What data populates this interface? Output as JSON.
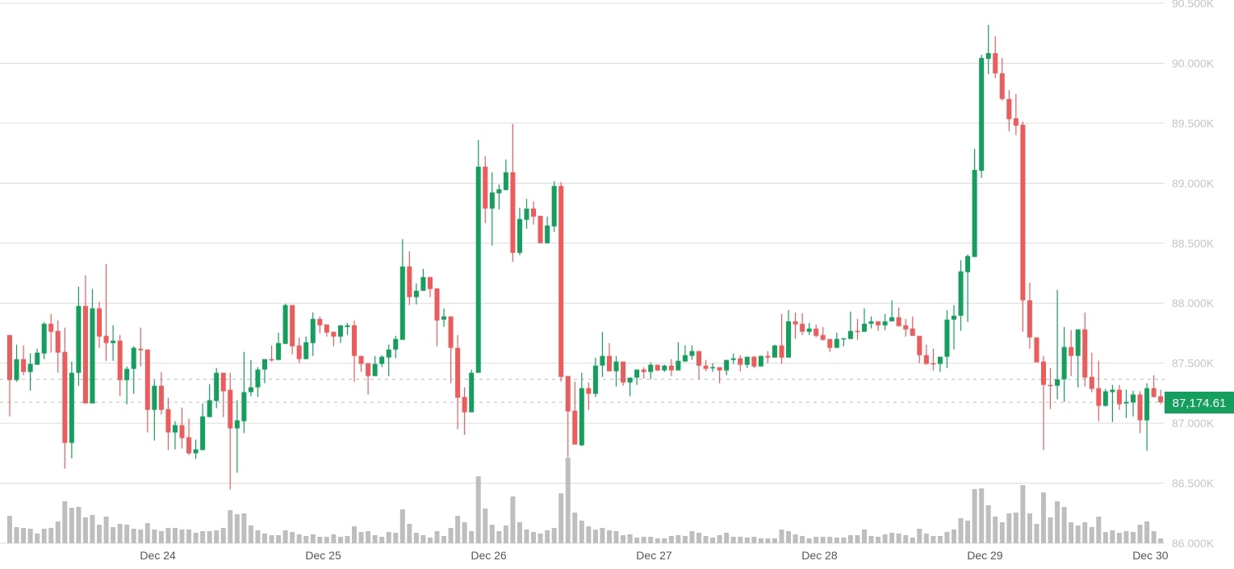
{
  "chart_data": {
    "type": "candlestick",
    "title": "",
    "grid": true,
    "colors": {
      "up": "#12a05c",
      "down": "#ef5b5b",
      "volume": "#bebebe",
      "grid": "#dcdcdc",
      "price_tag": "#12a05c"
    },
    "y_axis": {
      "position": "right",
      "range": [
        86000,
        90500
      ],
      "ticks": [
        {
          "value": 86000,
          "label": "86.000K"
        },
        {
          "value": 86500,
          "label": "86.500K"
        },
        {
          "value": 87000,
          "label": "87.000K"
        },
        {
          "value": 87500,
          "label": "87.500K"
        },
        {
          "value": 88000,
          "label": "88.000K"
        },
        {
          "value": 88500,
          "label": "88.500K"
        },
        {
          "value": 89000,
          "label": "89.000K"
        },
        {
          "value": 89500,
          "label": "89.500K"
        },
        {
          "value": 90000,
          "label": "90.000K"
        },
        {
          "value": 90500,
          "label": "90.500K"
        }
      ]
    },
    "x_axis": {
      "ticks": [
        "Dec 24",
        "Dec 25",
        "Dec 26",
        "Dec 27",
        "Dec 28",
        "Dec 29",
        "Dec 30"
      ]
    },
    "last_price": {
      "value": 87174.61,
      "label": "87,174.61"
    },
    "reference_lines": [
      87366,
      87174.61
    ],
    "candle_fields": [
      "open",
      "high",
      "low",
      "close"
    ],
    "candles": [
      [
        87735,
        87735,
        87057,
        87359
      ],
      [
        87359,
        87655,
        87346,
        87534
      ],
      [
        87534,
        87648,
        87400,
        87427
      ],
      [
        87427,
        87581,
        87272,
        87494
      ],
      [
        87487,
        87621,
        87487,
        87588
      ],
      [
        87581,
        87843,
        87534,
        87829
      ],
      [
        87829,
        87910,
        87588,
        87762
      ],
      [
        87769,
        87856,
        87420,
        87588
      ],
      [
        87594,
        87796,
        86621,
        86836
      ],
      [
        86836,
        87514,
        86708,
        87420
      ],
      [
        87420,
        88138,
        87312,
        87977
      ],
      [
        87977,
        88232,
        87165,
        87165
      ],
      [
        87165,
        88118,
        87165,
        87957
      ],
      [
        87957,
        88010,
        87628,
        87722
      ],
      [
        87728,
        88326,
        87520,
        87668
      ],
      [
        87668,
        87816,
        87520,
        87688
      ],
      [
        87688,
        87735,
        87225,
        87359
      ],
      [
        87359,
        87473,
        87158,
        87453
      ],
      [
        87453,
        87641,
        87245,
        87628
      ],
      [
        87621,
        87796,
        87473,
        87608
      ],
      [
        87614,
        87614,
        86923,
        87111
      ],
      [
        87111,
        87359,
        86856,
        87312
      ],
      [
        87312,
        87427,
        87071,
        87111
      ],
      [
        87118,
        87212,
        86776,
        86923
      ],
      [
        86923,
        87017,
        86782,
        86984
      ],
      [
        86984,
        87131,
        86789,
        86876
      ],
      [
        86883,
        87037,
        86735,
        86749
      ],
      [
        86749,
        86863,
        86702,
        86782
      ],
      [
        86776,
        87165,
        86776,
        87057
      ],
      [
        87051,
        87326,
        87051,
        87192
      ],
      [
        87185,
        87460,
        87125,
        87420
      ],
      [
        87420,
        87420,
        87051,
        87266
      ],
      [
        87279,
        87420,
        86447,
        86957
      ],
      [
        86957,
        87192,
        86588,
        87024
      ],
      [
        87017,
        87594,
        86917,
        87259
      ],
      [
        87259,
        87527,
        87225,
        87299
      ],
      [
        87299,
        87467,
        87219,
        87447
      ],
      [
        87447,
        87534,
        87333,
        87534
      ],
      [
        87534,
        87648,
        87514,
        87527
      ],
      [
        87527,
        87755,
        87527,
        87668
      ],
      [
        87661,
        87997,
        87661,
        87984
      ],
      [
        87984,
        87984,
        87574,
        87641
      ],
      [
        87648,
        87715,
        87500,
        87534
      ],
      [
        87534,
        87722,
        87534,
        87675
      ],
      [
        87668,
        87923,
        87561,
        87869
      ],
      [
        87869,
        87890,
        87749,
        87816
      ],
      [
        87823,
        87823,
        87722,
        87755
      ],
      [
        87762,
        87762,
        87641,
        87722
      ],
      [
        87722,
        87816,
        87668,
        87816
      ],
      [
        87802,
        87836,
        87735,
        87816
      ],
      [
        87816,
        87856,
        87346,
        87561
      ],
      [
        87561,
        87561,
        87427,
        87494
      ],
      [
        87500,
        87500,
        87239,
        87393
      ],
      [
        87393,
        87561,
        87393,
        87494
      ],
      [
        87494,
        87567,
        87467,
        87554
      ],
      [
        87547,
        87655,
        87393,
        87614
      ],
      [
        87614,
        87728,
        87541,
        87702
      ],
      [
        87695,
        88534,
        87695,
        88306
      ],
      [
        88306,
        88433,
        87984,
        88051
      ],
      [
        88051,
        88165,
        87990,
        88104
      ],
      [
        88104,
        88286,
        88104,
        88218
      ],
      [
        88218,
        88218,
        88051,
        88118
      ],
      [
        88124,
        88124,
        87641,
        87856
      ],
      [
        87863,
        87957,
        87802,
        87890
      ],
      [
        87890,
        87890,
        87333,
        87628
      ],
      [
        87628,
        87735,
        86950,
        87212
      ],
      [
        87219,
        87299,
        86903,
        87091
      ],
      [
        87091,
        87447,
        87091,
        87420
      ],
      [
        87420,
        89359,
        87420,
        89138
      ],
      [
        89138,
        89225,
        88668,
        88789
      ],
      [
        88789,
        89091,
        88480,
        88923
      ],
      [
        88916,
        88990,
        88782,
        88950
      ],
      [
        88943,
        89198,
        88943,
        89091
      ],
      [
        89091,
        89494,
        88346,
        88420
      ],
      [
        88420,
        88796,
        88400,
        88702
      ],
      [
        88695,
        88869,
        88621,
        88789
      ],
      [
        88789,
        88849,
        88655,
        88722
      ],
      [
        88728,
        88728,
        88500,
        88500
      ],
      [
        88500,
        88722,
        88500,
        88648
      ],
      [
        88641,
        89017,
        88594,
        88977
      ],
      [
        88977,
        89010,
        87346,
        87386
      ],
      [
        87393,
        87393,
        86715,
        87098
      ],
      [
        87104,
        87346,
        86822,
        86822
      ],
      [
        86816,
        87420,
        86809,
        87292
      ],
      [
        87292,
        87339,
        87111,
        87245
      ],
      [
        87245,
        87547,
        87219,
        87480
      ],
      [
        87480,
        87762,
        87386,
        87561
      ],
      [
        87561,
        87668,
        87433,
        87433
      ],
      [
        87433,
        87561,
        87306,
        87514
      ],
      [
        87514,
        87514,
        87312,
        87339
      ],
      [
        87339,
        87380,
        87225,
        87380
      ],
      [
        87380,
        87447,
        87319,
        87447
      ],
      [
        87447,
        87467,
        87373,
        87427
      ],
      [
        87427,
        87507,
        87366,
        87487
      ],
      [
        87487,
        87487,
        87433,
        87440
      ],
      [
        87440,
        87487,
        87427,
        87480
      ],
      [
        87480,
        87534,
        87393,
        87440
      ],
      [
        87440,
        87675,
        87440,
        87520
      ],
      [
        87514,
        87648,
        87514,
        87567
      ],
      [
        87561,
        87648,
        87527,
        87601
      ],
      [
        87601,
        87601,
        87366,
        87480
      ],
      [
        87480,
        87527,
        87433,
        87453
      ],
      [
        87460,
        87500,
        87427,
        87467
      ],
      [
        87467,
        87467,
        87333,
        87440
      ],
      [
        87440,
        87527,
        87400,
        87527
      ],
      [
        87527,
        87581,
        87494,
        87541
      ],
      [
        87541,
        87567,
        87433,
        87487
      ],
      [
        87487,
        87554,
        87460,
        87554
      ],
      [
        87554,
        87561,
        87460,
        87473
      ],
      [
        87473,
        87561,
        87473,
        87561
      ],
      [
        87561,
        87601,
        87500,
        87547
      ],
      [
        87547,
        87655,
        87547,
        87648
      ],
      [
        87648,
        87910,
        87494,
        87547
      ],
      [
        87547,
        87943,
        87547,
        87849
      ],
      [
        87849,
        87923,
        87702,
        87823
      ],
      [
        87829,
        87917,
        87735,
        87762
      ],
      [
        87762,
        87836,
        87735,
        87789
      ],
      [
        87789,
        87823,
        87715,
        87728
      ],
      [
        87735,
        87802,
        87688,
        87695
      ],
      [
        87702,
        87702,
        87594,
        87628
      ],
      [
        87628,
        87755,
        87628,
        87702
      ],
      [
        87702,
        87708,
        87641,
        87708
      ],
      [
        87702,
        87930,
        87702,
        87769
      ],
      [
        87769,
        87869,
        87695,
        87762
      ],
      [
        87762,
        87957,
        87762,
        87829
      ],
      [
        87829,
        87890,
        87789,
        87849
      ],
      [
        87849,
        87849,
        87769,
        87816
      ],
      [
        87816,
        87910,
        87775,
        87849
      ],
      [
        87849,
        88024,
        87849,
        87883
      ],
      [
        87883,
        87964,
        87809,
        87809
      ],
      [
        87816,
        87869,
        87722,
        87782
      ],
      [
        87789,
        87890,
        87728,
        87728
      ],
      [
        87728,
        87728,
        87500,
        87567
      ],
      [
        87567,
        87655,
        87487,
        87494
      ],
      [
        87500,
        87621,
        87440,
        87494
      ],
      [
        87494,
        87554,
        87427,
        87554
      ],
      [
        87554,
        87943,
        87460,
        87863
      ],
      [
        87863,
        87984,
        87614,
        87896
      ],
      [
        87896,
        88359,
        87769,
        88265
      ],
      [
        88259,
        88406,
        87843,
        88393
      ],
      [
        88386,
        89285,
        88386,
        89111
      ],
      [
        89104,
        90071,
        89044,
        90044
      ],
      [
        90037,
        90319,
        89910,
        90084
      ],
      [
        90084,
        90225,
        89876,
        89916
      ],
      [
        89916,
        90044,
        89688,
        89702
      ],
      [
        89702,
        89775,
        89433,
        89534
      ],
      [
        89541,
        89742,
        89400,
        89480
      ],
      [
        89487,
        89514,
        87762,
        88024
      ],
      [
        88024,
        88171,
        87621,
        87715
      ],
      [
        87715,
        87715,
        87507,
        87507
      ],
      [
        87514,
        87561,
        86776,
        87319
      ],
      [
        87319,
        87460,
        87118,
        87312
      ],
      [
        87312,
        88111,
        87198,
        87366
      ],
      [
        87366,
        87802,
        87178,
        87635
      ],
      [
        87635,
        87775,
        87393,
        87561
      ],
      [
        87561,
        87782,
        87299,
        87782
      ],
      [
        87782,
        87923,
        87306,
        87380
      ],
      [
        87386,
        87588,
        87259,
        87286
      ],
      [
        87292,
        87520,
        87017,
        87145
      ],
      [
        87145,
        87286,
        87138,
        87266
      ],
      [
        87259,
        87319,
        87010,
        87279
      ],
      [
        87279,
        87319,
        87111,
        87158
      ],
      [
        87165,
        87279,
        87044,
        87178
      ],
      [
        87172,
        87272,
        87057,
        87239
      ],
      [
        87239,
        87266,
        86917,
        87024
      ],
      [
        87024,
        87333,
        86769,
        87292
      ],
      [
        87292,
        87400,
        87212,
        87219
      ],
      [
        87225,
        87279,
        87158,
        87175
      ]
    ],
    "volume_relative": [
      34,
      20,
      19,
      18,
      12,
      18,
      19,
      27,
      52,
      44,
      45,
      32,
      35,
      23,
      33,
      20,
      24,
      23,
      18,
      17,
      25,
      17,
      15,
      19,
      19,
      17,
      17,
      13,
      15,
      15,
      16,
      19,
      41,
      36,
      37,
      22,
      16,
      12,
      10,
      10,
      16,
      14,
      11,
      9,
      11,
      8,
      8,
      11,
      8,
      9,
      21,
      14,
      15,
      10,
      8,
      14,
      13,
      42,
      24,
      13,
      10,
      7,
      15,
      9,
      19,
      34,
      26,
      15,
      83,
      43,
      23,
      15,
      22,
      58,
      26,
      17,
      14,
      12,
      16,
      19,
      62,
      106,
      38,
      28,
      21,
      17,
      19,
      16,
      15,
      10,
      11,
      7,
      8,
      8,
      6,
      6,
      9,
      10,
      9,
      15,
      13,
      9,
      7,
      10,
      13,
      8,
      8,
      7,
      8,
      6,
      6,
      6,
      17,
      15,
      11,
      9,
      6,
      8,
      8,
      8,
      7,
      7,
      10,
      10,
      17,
      9,
      8,
      11,
      13,
      12,
      10,
      7,
      18,
      12,
      9,
      9,
      14,
      17,
      31,
      28,
      67,
      68,
      47,
      33,
      26,
      37,
      38,
      72,
      37,
      24,
      63,
      32,
      52,
      45,
      26,
      22,
      26,
      20,
      33,
      14,
      16,
      13,
      15,
      14,
      23,
      27,
      15,
      6
    ]
  }
}
